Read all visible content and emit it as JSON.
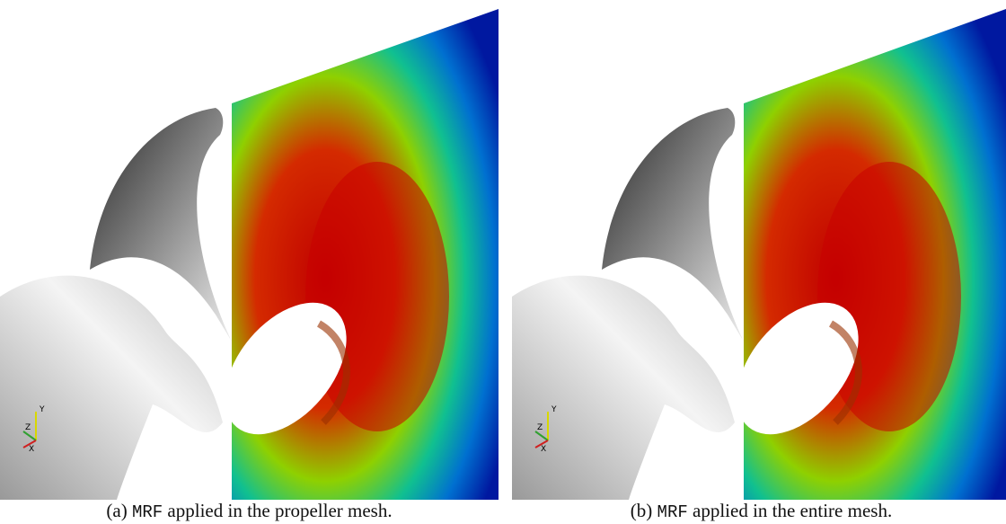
{
  "figures": [
    {
      "label": "(a)",
      "code": "MRF",
      "caption": "applied in the propeller mesh.",
      "axes": {
        "y": "Y",
        "z": "Z",
        "x": "X"
      }
    },
    {
      "label": "(b)",
      "code": "MRF",
      "caption": "applied in the entire mesh.",
      "axes": {
        "y": "Y",
        "z": "Z",
        "x": "X"
      }
    }
  ]
}
